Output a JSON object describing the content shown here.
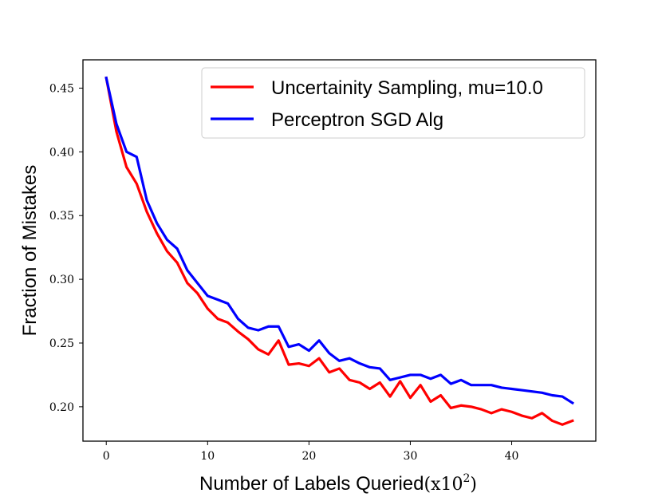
{
  "chart_data": {
    "type": "line",
    "title": "",
    "xlabel": "Number of Labels Queried",
    "xlabel_suffix": "(x10",
    "xlabel_exponent": "2",
    "xlabel_close": ")",
    "ylabel": "Fraction of Mistakes",
    "xlim": [
      -2.3,
      48.3
    ],
    "ylim": [
      0.173,
      0.4722
    ],
    "xticks": [
      0,
      10,
      20,
      30,
      40
    ],
    "xtick_labels": [
      "0",
      "10",
      "20",
      "30",
      "40"
    ],
    "yticks": [
      0.2,
      0.25,
      0.3,
      0.35,
      0.4,
      0.45
    ],
    "ytick_labels": [
      "0.20",
      "0.25",
      "0.30",
      "0.35",
      "0.40",
      "0.45"
    ],
    "grid": false,
    "legend_position": "top-right",
    "x": [
      0,
      1,
      2,
      3,
      4,
      5,
      6,
      7,
      8,
      9,
      10,
      11,
      12,
      13,
      14,
      15,
      16,
      17,
      18,
      19,
      20,
      21,
      22,
      23,
      24,
      25,
      26,
      27,
      28,
      29,
      30,
      31,
      32,
      33,
      34,
      35,
      36,
      37,
      38,
      39,
      40,
      41,
      42,
      43,
      44,
      45,
      46
    ],
    "series": [
      {
        "name": "Uncertainity Sampling, mu=10.0",
        "color": "#ff0000",
        "values": [
          0.458,
          0.416,
          0.388,
          0.375,
          0.353,
          0.336,
          0.322,
          0.313,
          0.297,
          0.289,
          0.277,
          0.269,
          0.266,
          0.259,
          0.253,
          0.245,
          0.241,
          0.252,
          0.233,
          0.234,
          0.232,
          0.238,
          0.227,
          0.23,
          0.221,
          0.219,
          0.214,
          0.219,
          0.208,
          0.22,
          0.207,
          0.217,
          0.204,
          0.209,
          0.199,
          0.201,
          0.2,
          0.198,
          0.195,
          0.198,
          0.196,
          0.193,
          0.191,
          0.195,
          0.189,
          0.186,
          0.189
        ]
      },
      {
        "name": "Perceptron SGD Alg",
        "color": "#0000ff",
        "values": [
          0.458,
          0.422,
          0.4,
          0.396,
          0.362,
          0.344,
          0.331,
          0.324,
          0.307,
          0.297,
          0.287,
          0.284,
          0.281,
          0.269,
          0.262,
          0.26,
          0.263,
          0.263,
          0.247,
          0.249,
          0.244,
          0.252,
          0.242,
          0.236,
          0.238,
          0.234,
          0.231,
          0.23,
          0.221,
          0.223,
          0.225,
          0.225,
          0.222,
          0.225,
          0.218,
          0.221,
          0.217,
          0.217,
          0.217,
          0.215,
          0.214,
          0.213,
          0.212,
          0.211,
          0.209,
          0.208,
          0.203
        ]
      }
    ]
  }
}
